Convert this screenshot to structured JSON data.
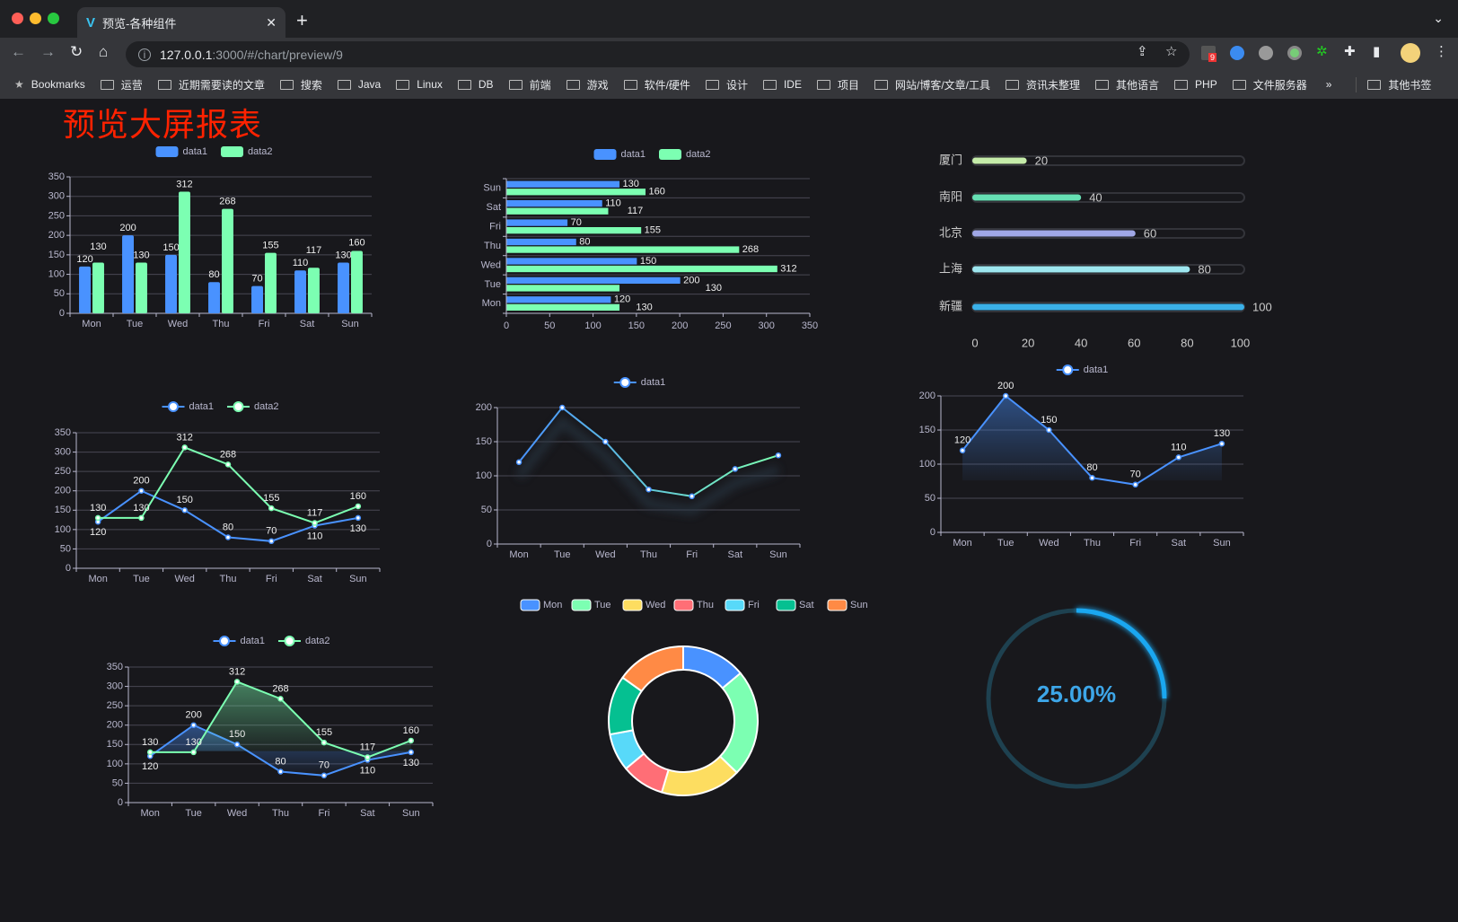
{
  "browser": {
    "tab_title": "预览-各种组件",
    "url_host": "127.0.0.1",
    "url_path": ":3000/#/chart/preview/9",
    "extension_badge": "9",
    "bookmarks": [
      "Bookmarks",
      "运营",
      "近期需要读的文章",
      "搜索",
      "Java",
      "Linux",
      "DB",
      "前端",
      "游戏",
      "软件/硬件",
      "设计",
      "IDE",
      "项目",
      "网站/博客/文章/工具",
      "资讯未整理",
      "其他语言",
      "PHP",
      "文件服务器"
    ],
    "bookmarks_more": "»",
    "other_bookmarks": "其他书签"
  },
  "page": {
    "title": "预览大屏报表"
  },
  "colors": {
    "data1": "#4992ff",
    "data2": "#7cffb2",
    "background": "#18181c",
    "title": "#ff2200",
    "gauge": "#1aa7f0"
  },
  "chart_data": [
    {
      "type": "bar",
      "legend": [
        "data1",
        "data2"
      ],
      "categories": [
        "Mon",
        "Tue",
        "Wed",
        "Thu",
        "Fri",
        "Sat",
        "Sun"
      ],
      "series": [
        {
          "name": "data1",
          "values": [
            120,
            200,
            150,
            80,
            70,
            110,
            130
          ]
        },
        {
          "name": "data2",
          "values": [
            130,
            130,
            312,
            268,
            155,
            117,
            160
          ]
        }
      ],
      "ylim": [
        0,
        350
      ],
      "yticks": [
        "0",
        "50",
        "100",
        "150",
        "200",
        "250",
        "300",
        "350"
      ],
      "grid": true,
      "legend_position": "top"
    },
    {
      "type": "bar",
      "orientation": "horizontal",
      "legend": [
        "data1",
        "data2"
      ],
      "categories": [
        "Mon",
        "Tue",
        "Wed",
        "Thu",
        "Fri",
        "Sat",
        "Sun"
      ],
      "series": [
        {
          "name": "data1",
          "values": [
            120,
            200,
            150,
            80,
            70,
            110,
            130
          ]
        },
        {
          "name": "data2",
          "values": [
            130,
            130,
            312,
            268,
            155,
            117,
            160
          ]
        }
      ],
      "xlim": [
        0,
        350
      ],
      "xticks": [
        "0",
        "50",
        "100",
        "150",
        "200",
        "250",
        "300",
        "350"
      ],
      "grid": true,
      "legend_position": "top"
    },
    {
      "type": "bar",
      "orientation": "horizontal",
      "style": "progress",
      "categories": [
        "厦门",
        "南阳",
        "北京",
        "上海",
        "新疆"
      ],
      "values": [
        20,
        40,
        60,
        80,
        100
      ],
      "colors": [
        "#c5eca9",
        "#66e0b4",
        "#a0a7e6",
        "#9de6ef",
        "#3ab0e8"
      ],
      "xlim": [
        0,
        100
      ],
      "xticks": [
        "0",
        "20",
        "40",
        "60",
        "80",
        "100"
      ]
    },
    {
      "type": "line",
      "legend": [
        "data1",
        "data2"
      ],
      "categories": [
        "Mon",
        "Tue",
        "Wed",
        "Thu",
        "Fri",
        "Sat",
        "Sun"
      ],
      "series": [
        {
          "name": "data1",
          "values": [
            120,
            200,
            150,
            80,
            70,
            110,
            130
          ]
        },
        {
          "name": "data2",
          "values": [
            130,
            130,
            312,
            268,
            155,
            117,
            160
          ]
        }
      ],
      "ylim": [
        0,
        350
      ],
      "yticks": [
        "0",
        "50",
        "100",
        "150",
        "200",
        "250",
        "300",
        "350"
      ],
      "labels": true,
      "grid": true,
      "legend_position": "top"
    },
    {
      "type": "line",
      "legend": [
        "data1"
      ],
      "categories": [
        "Mon",
        "Tue",
        "Wed",
        "Thu",
        "Fri",
        "Sat",
        "Sun"
      ],
      "series": [
        {
          "name": "data1",
          "values": [
            120,
            200,
            150,
            80,
            70,
            110,
            130
          ]
        }
      ],
      "ylim": [
        0,
        200
      ],
      "yticks": [
        "0",
        "50",
        "100",
        "150",
        "200"
      ],
      "gradient": [
        "#4992ff",
        "#7cffb2"
      ],
      "grid": true,
      "legend_position": "top"
    },
    {
      "type": "area",
      "legend": [
        "data1"
      ],
      "categories": [
        "Mon",
        "Tue",
        "Wed",
        "Thu",
        "Fri",
        "Sat",
        "Sun"
      ],
      "series": [
        {
          "name": "data1",
          "values": [
            120,
            200,
            150,
            80,
            70,
            110,
            130
          ]
        }
      ],
      "ylim": [
        0,
        200
      ],
      "yticks": [
        "0",
        "50",
        "100",
        "150",
        "200"
      ],
      "labels": true,
      "grid": true,
      "legend_position": "top"
    },
    {
      "type": "area",
      "legend": [
        "data1",
        "data2"
      ],
      "categories": [
        "Mon",
        "Tue",
        "Wed",
        "Thu",
        "Fri",
        "Sat",
        "Sun"
      ],
      "series": [
        {
          "name": "data1",
          "values": [
            120,
            200,
            150,
            80,
            70,
            110,
            130
          ]
        },
        {
          "name": "data2",
          "values": [
            130,
            130,
            312,
            268,
            155,
            117,
            160
          ]
        }
      ],
      "ylim": [
        0,
        350
      ],
      "yticks": [
        "0",
        "50",
        "100",
        "150",
        "200",
        "250",
        "300",
        "350"
      ],
      "labels": true,
      "grid": true,
      "legend_position": "top"
    },
    {
      "type": "pie",
      "style": "donut",
      "legend": [
        "Mon",
        "Tue",
        "Wed",
        "Thu",
        "Fri",
        "Sat",
        "Sun"
      ],
      "values": [
        120,
        200,
        150,
        80,
        70,
        110,
        130
      ],
      "colors": [
        "#4992ff",
        "#7cffb2",
        "#fddd60",
        "#ff6e76",
        "#58d9f9",
        "#05c091",
        "#ff8a45"
      ],
      "legend_position": "top"
    },
    {
      "type": "gauge",
      "value": 25,
      "max": 100,
      "label": "25.00%"
    }
  ]
}
